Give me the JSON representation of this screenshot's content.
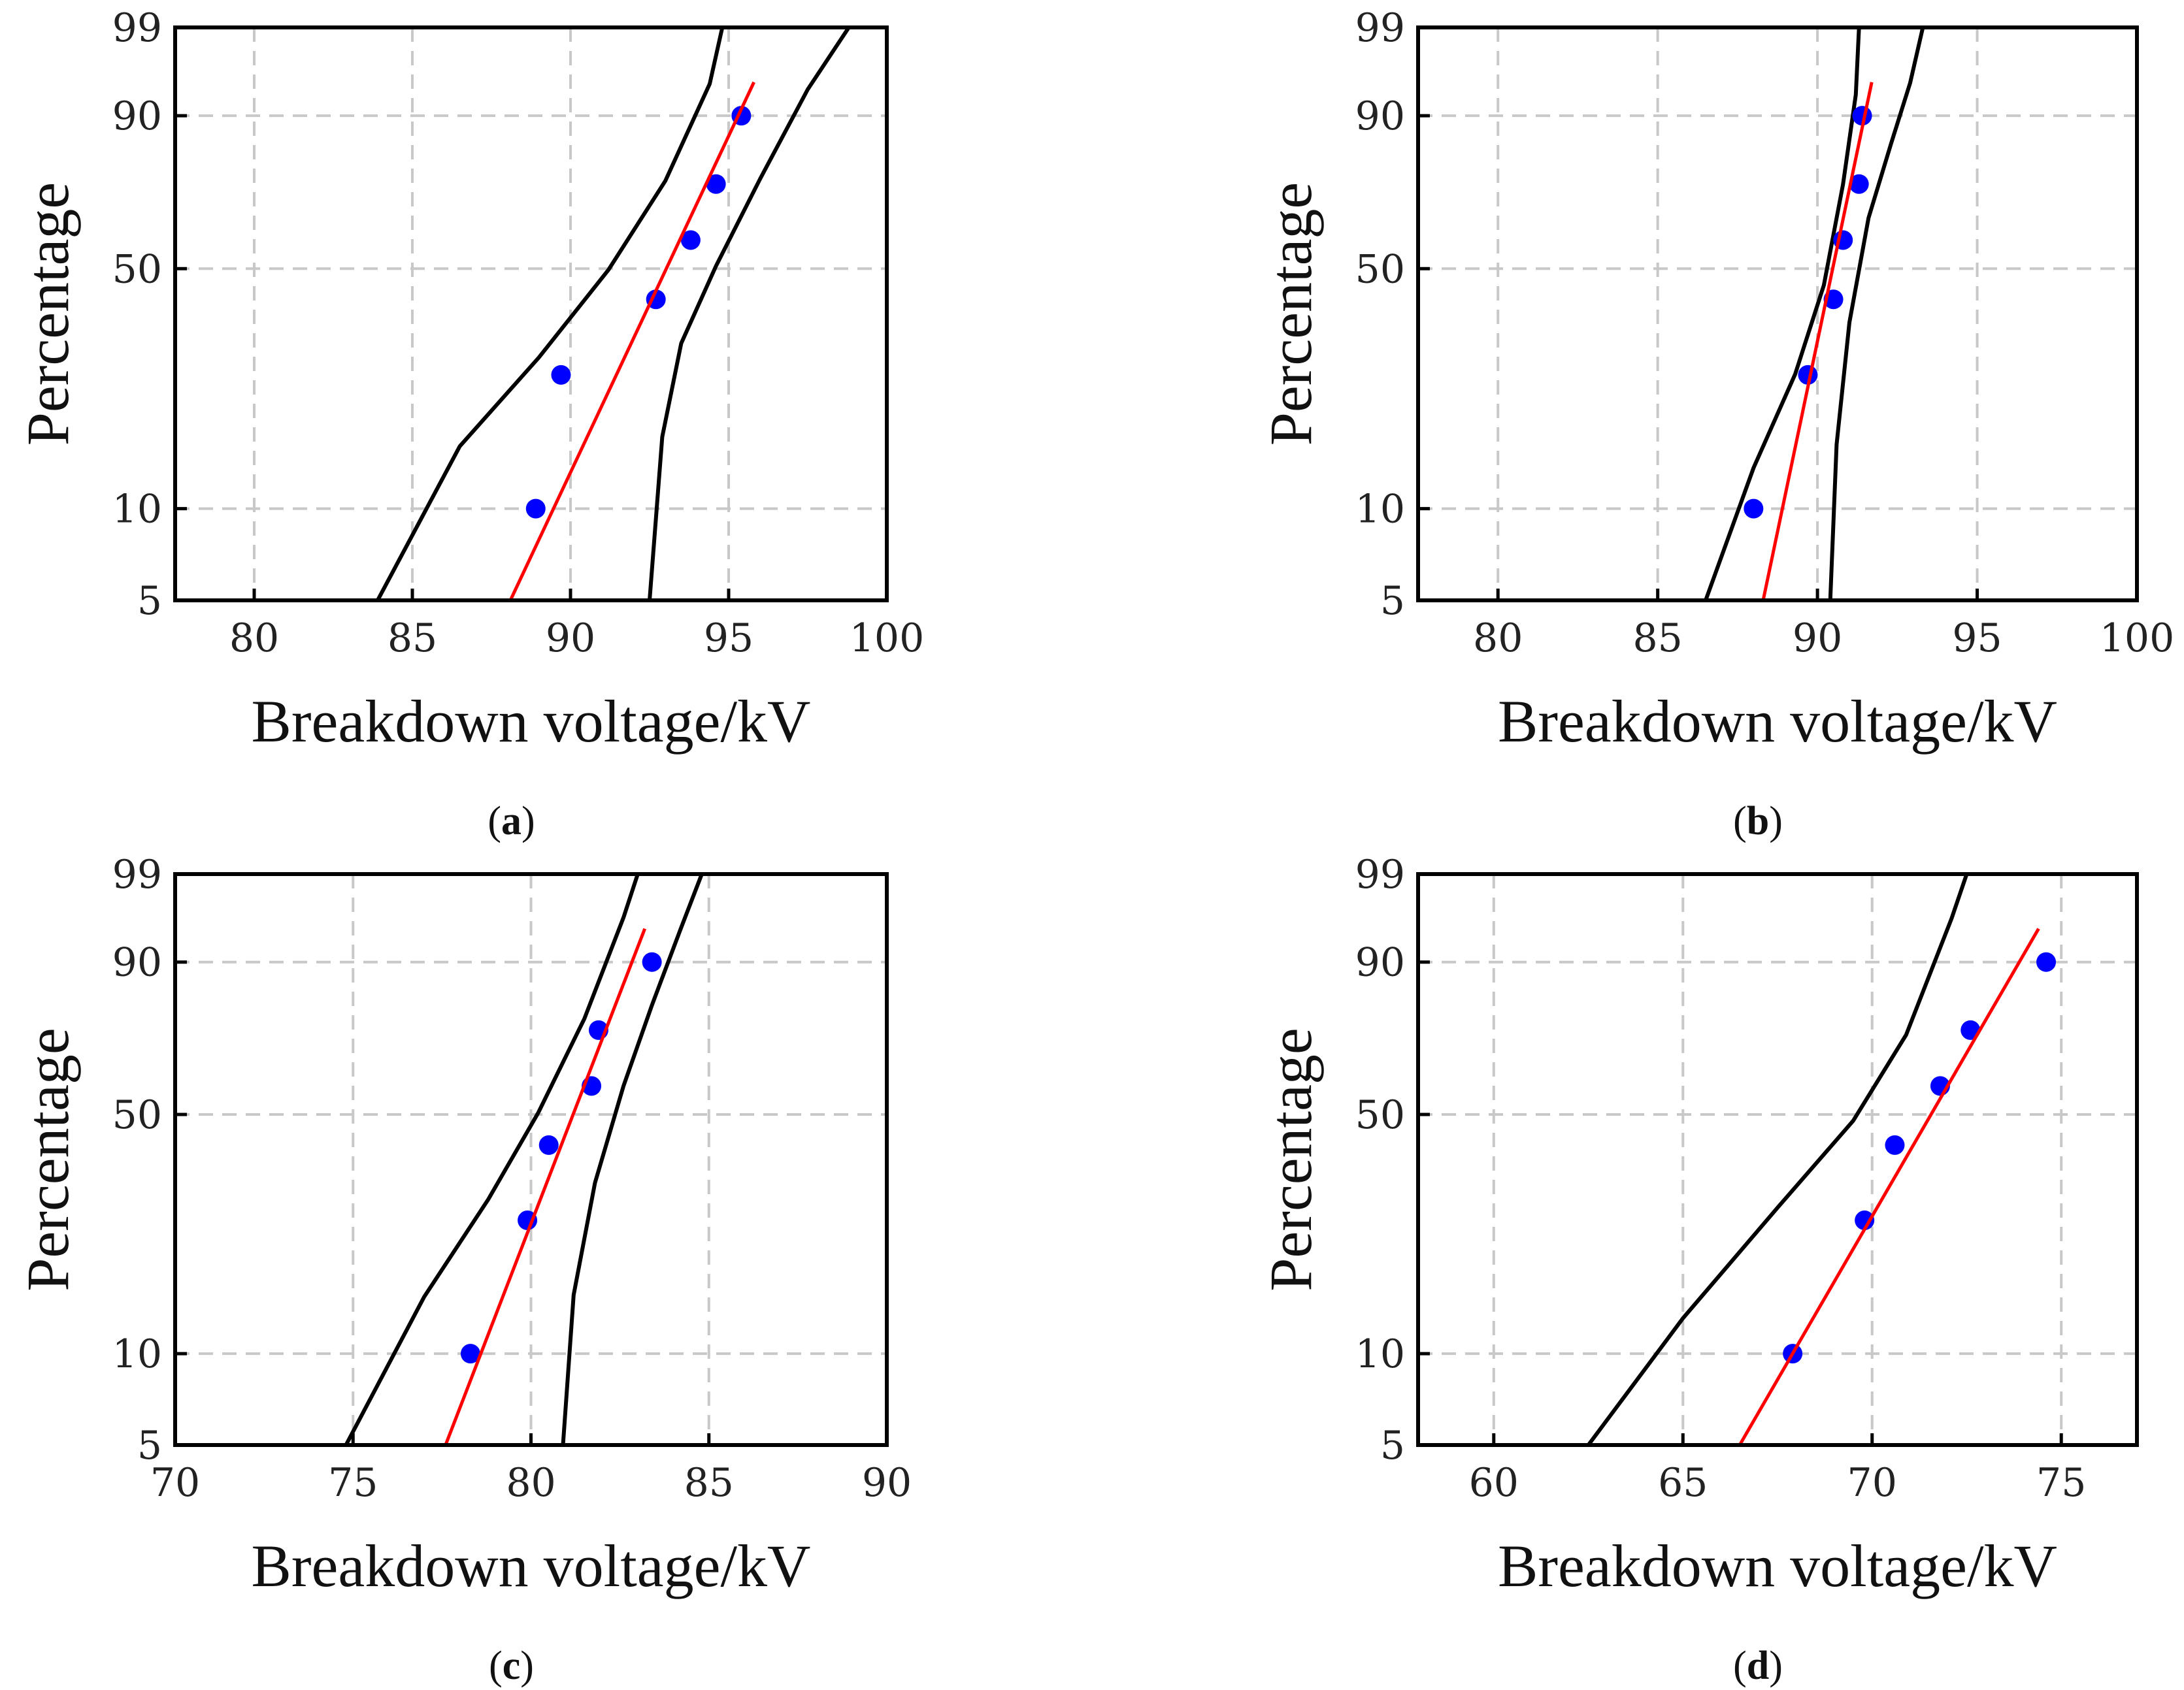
{
  "chart_data": [
    {
      "panel": "a",
      "type": "scatter",
      "caption_letter": "a",
      "xlabel": "Breakdown voltage/kV",
      "ylabel": "Percentage",
      "xlim": [
        77.5,
        100
      ],
      "xticks": [
        80,
        85,
        90,
        95,
        100
      ],
      "yticks": [
        5,
        10,
        50,
        90,
        99
      ],
      "y_scale": "weibull-probability",
      "grid": true,
      "points": [
        {
          "x": 88.9,
          "y": 10
        },
        {
          "x": 89.7,
          "y": 26
        },
        {
          "x": 92.7,
          "y": 42
        },
        {
          "x": 93.8,
          "y": 58
        },
        {
          "x": 94.6,
          "y": 74
        },
        {
          "x": 95.4,
          "y": 90
        }
      ],
      "fit_line": [
        {
          "x": 88.1,
          "y": 5
        },
        {
          "x": 95.8,
          "y": 95
        }
      ],
      "upper_bound": [
        {
          "x": 83.9,
          "y": 5
        },
        {
          "x": 86.5,
          "y": 15.8
        },
        {
          "x": 89.0,
          "y": 29.2
        },
        {
          "x": 91.2,
          "y": 49.7
        },
        {
          "x": 93.0,
          "y": 74.9
        },
        {
          "x": 94.4,
          "y": 94.8
        },
        {
          "x": 94.8,
          "y": 99
        }
      ],
      "lower_bound": [
        {
          "x": 92.5,
          "y": 5
        },
        {
          "x": 92.9,
          "y": 16.9
        },
        {
          "x": 93.5,
          "y": 32.0
        },
        {
          "x": 94.6,
          "y": 50.7
        },
        {
          "x": 96.0,
          "y": 75.5
        },
        {
          "x": 97.5,
          "y": 94.1
        },
        {
          "x": 98.8,
          "y": 99
        }
      ]
    },
    {
      "panel": "b",
      "type": "scatter",
      "caption_letter": "b",
      "xlabel": "Breakdown voltage/kV",
      "ylabel": "Percentage",
      "xlim": [
        77.5,
        100
      ],
      "xticks": [
        80,
        85,
        90,
        95,
        100
      ],
      "yticks": [
        5,
        10,
        50,
        90,
        99
      ],
      "y_scale": "weibull-probability",
      "grid": true,
      "points": [
        {
          "x": 88.0,
          "y": 10
        },
        {
          "x": 89.7,
          "y": 26
        },
        {
          "x": 90.5,
          "y": 42
        },
        {
          "x": 90.8,
          "y": 58
        },
        {
          "x": 91.3,
          "y": 74
        },
        {
          "x": 91.4,
          "y": 90
        }
      ],
      "fit_line": [
        {
          "x": 88.3,
          "y": 5
        },
        {
          "x": 91.7,
          "y": 95
        }
      ],
      "upper_bound": [
        {
          "x": 86.5,
          "y": 5
        },
        {
          "x": 88.0,
          "y": 13.5
        },
        {
          "x": 89.3,
          "y": 26.1
        },
        {
          "x": 90.2,
          "y": 45.6
        },
        {
          "x": 90.8,
          "y": 73.9
        },
        {
          "x": 91.2,
          "y": 93.4
        },
        {
          "x": 91.3,
          "y": 99
        }
      ],
      "lower_bound": [
        {
          "x": 90.4,
          "y": 5
        },
        {
          "x": 90.6,
          "y": 16.0
        },
        {
          "x": 91.0,
          "y": 36.5
        },
        {
          "x": 91.6,
          "y": 64.4
        },
        {
          "x": 92.3,
          "y": 84.2
        },
        {
          "x": 92.9,
          "y": 94.9
        },
        {
          "x": 93.3,
          "y": 99
        }
      ]
    },
    {
      "panel": "c",
      "type": "scatter",
      "caption_letter": "c",
      "xlabel": "Breakdown voltage/kV",
      "ylabel": "Percentage",
      "xlim": [
        70,
        90
      ],
      "xticks": [
        70,
        75,
        80,
        85,
        90
      ],
      "yticks": [
        5,
        10,
        50,
        90,
        99
      ],
      "y_scale": "weibull-probability",
      "grid": true,
      "points": [
        {
          "x": 78.3,
          "y": 10
        },
        {
          "x": 79.9,
          "y": 26
        },
        {
          "x": 80.5,
          "y": 42
        },
        {
          "x": 81.7,
          "y": 58
        },
        {
          "x": 81.9,
          "y": 74
        },
        {
          "x": 83.4,
          "y": 90
        }
      ],
      "fit_line": [
        {
          "x": 77.6,
          "y": 5
        },
        {
          "x": 83.2,
          "y": 95
        }
      ],
      "upper_bound": [
        {
          "x": 74.8,
          "y": 5
        },
        {
          "x": 77.0,
          "y": 15.2
        },
        {
          "x": 78.8,
          "y": 29.9
        },
        {
          "x": 80.2,
          "y": 50.4
        },
        {
          "x": 81.5,
          "y": 77.1
        },
        {
          "x": 82.6,
          "y": 96.2
        },
        {
          "x": 83.0,
          "y": 99
        }
      ],
      "lower_bound": [
        {
          "x": 80.9,
          "y": 5
        },
        {
          "x": 81.2,
          "y": 15.4
        },
        {
          "x": 81.8,
          "y": 33.3
        },
        {
          "x": 82.6,
          "y": 58.0
        },
        {
          "x": 83.4,
          "y": 80.6
        },
        {
          "x": 84.2,
          "y": 94.9
        },
        {
          "x": 84.8,
          "y": 99
        }
      ]
    },
    {
      "panel": "d",
      "type": "scatter",
      "caption_letter": "d",
      "xlabel": "Breakdown voltage/kV",
      "ylabel": "Percentage",
      "xlim": [
        58,
        77
      ],
      "xticks": [
        60,
        65,
        70,
        75
      ],
      "yticks": [
        5,
        10,
        50,
        90,
        99
      ],
      "y_scale": "weibull-probability",
      "grid": true,
      "points": [
        {
          "x": 67.9,
          "y": 10
        },
        {
          "x": 69.8,
          "y": 26
        },
        {
          "x": 70.6,
          "y": 42
        },
        {
          "x": 71.8,
          "y": 58
        },
        {
          "x": 72.6,
          "y": 74
        },
        {
          "x": 74.6,
          "y": 90
        }
      ],
      "fit_line": [
        {
          "x": 66.5,
          "y": 5
        },
        {
          "x": 74.4,
          "y": 95
        }
      ],
      "upper_bound": [
        {
          "x": 62.5,
          "y": 5
        },
        {
          "x": 65.0,
          "y": 13.0
        },
        {
          "x": 67.5,
          "y": 28.3
        },
        {
          "x": 69.5,
          "y": 48.3
        },
        {
          "x": 70.9,
          "y": 72.7
        },
        {
          "x": 72.1,
          "y": 96.1
        },
        {
          "x": 72.5,
          "y": 99
        }
      ]
    }
  ]
}
